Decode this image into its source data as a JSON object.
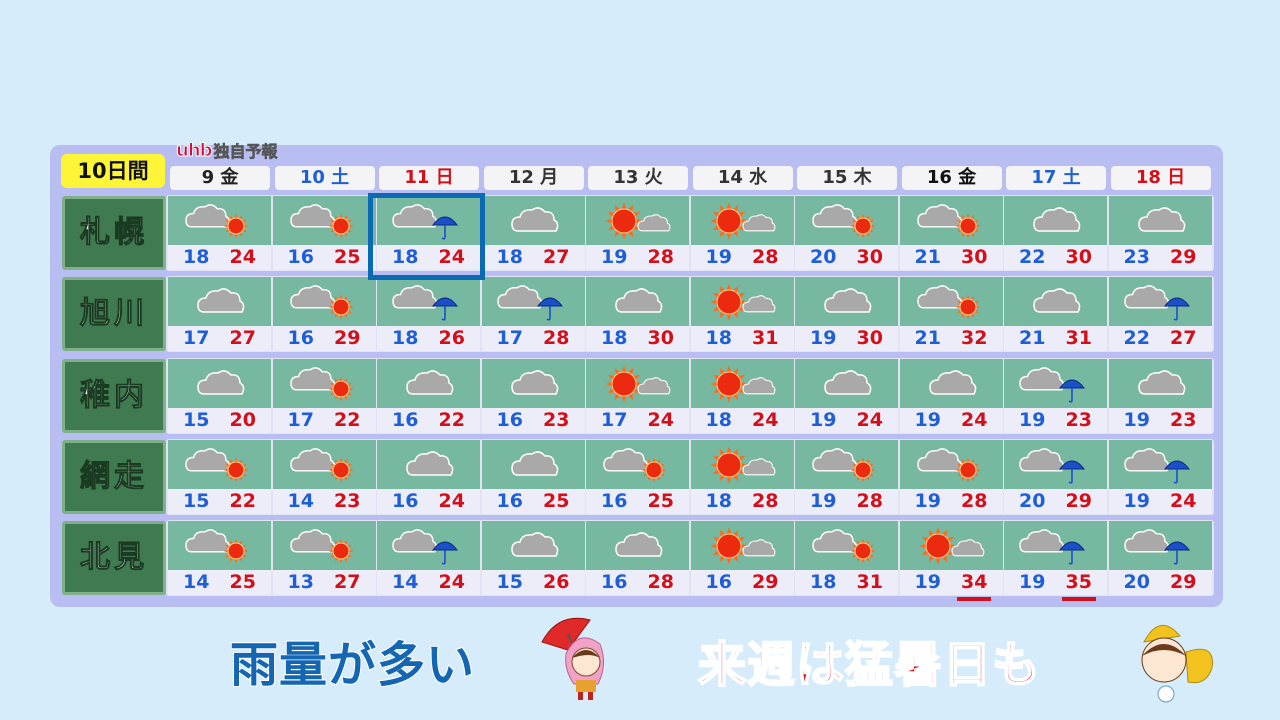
{
  "brand": {
    "logo": "uhb",
    "label": "独自予報"
  },
  "period_label": "10日間",
  "days": [
    {
      "label": "9 金",
      "color": "#222222"
    },
    {
      "label": "10 土",
      "color": "#1f5fd6"
    },
    {
      "label": "11 日",
      "color": "#d3101a"
    },
    {
      "label": "12 月",
      "color": "#333333"
    },
    {
      "label": "13 火",
      "color": "#333333"
    },
    {
      "label": "14 水",
      "color": "#333333"
    },
    {
      "label": "15 木",
      "color": "#333333"
    },
    {
      "label": "16 金",
      "color": "#111111"
    },
    {
      "label": "17 土",
      "color": "#1f5fd6"
    },
    {
      "label": "18 日",
      "color": "#d3101a"
    }
  ],
  "highlighted": {
    "city": "札幌",
    "day": "11 日"
  },
  "cities": [
    {
      "name": "札幌",
      "forecast": [
        {
          "icon": "cloud-sun",
          "low": 18,
          "high": 24
        },
        {
          "icon": "cloud-sun",
          "low": 16,
          "high": 25
        },
        {
          "icon": "cloud-umbrella",
          "low": 18,
          "high": 24
        },
        {
          "icon": "cloud",
          "low": 18,
          "high": 27
        },
        {
          "icon": "sun-cloud",
          "low": 19,
          "high": 28
        },
        {
          "icon": "sun-cloud",
          "low": 19,
          "high": 28
        },
        {
          "icon": "cloud-sun",
          "low": 20,
          "high": 30
        },
        {
          "icon": "cloud-sun",
          "low": 21,
          "high": 30
        },
        {
          "icon": "cloud",
          "low": 22,
          "high": 30
        },
        {
          "icon": "cloud",
          "low": 23,
          "high": 29
        }
      ]
    },
    {
      "name": "旭川",
      "forecast": [
        {
          "icon": "cloud",
          "low": 17,
          "high": 27
        },
        {
          "icon": "cloud-sun",
          "low": 16,
          "high": 29
        },
        {
          "icon": "cloud-umbrella",
          "low": 18,
          "high": 26
        },
        {
          "icon": "cloud-umbrella",
          "low": 17,
          "high": 28
        },
        {
          "icon": "cloud",
          "low": 18,
          "high": 30
        },
        {
          "icon": "sun-cloud",
          "low": 18,
          "high": 31
        },
        {
          "icon": "cloud",
          "low": 19,
          "high": 30
        },
        {
          "icon": "cloud-sun",
          "low": 21,
          "high": 32
        },
        {
          "icon": "cloud",
          "low": 21,
          "high": 31
        },
        {
          "icon": "cloud-umbrella",
          "low": 22,
          "high": 27
        }
      ]
    },
    {
      "name": "稚内",
      "forecast": [
        {
          "icon": "cloud",
          "low": 15,
          "high": 20
        },
        {
          "icon": "cloud-sun",
          "low": 17,
          "high": 22
        },
        {
          "icon": "cloud",
          "low": 16,
          "high": 22
        },
        {
          "icon": "cloud",
          "low": 16,
          "high": 23
        },
        {
          "icon": "sun-cloud",
          "low": 17,
          "high": 24
        },
        {
          "icon": "sun-cloud",
          "low": 18,
          "high": 24
        },
        {
          "icon": "cloud",
          "low": 19,
          "high": 24
        },
        {
          "icon": "cloud",
          "low": 19,
          "high": 24
        },
        {
          "icon": "cloud-umbrella",
          "low": 19,
          "high": 23
        },
        {
          "icon": "cloud",
          "low": 19,
          "high": 23
        }
      ]
    },
    {
      "name": "網走",
      "forecast": [
        {
          "icon": "cloud-sun",
          "low": 15,
          "high": 22
        },
        {
          "icon": "cloud-sun",
          "low": 14,
          "high": 23
        },
        {
          "icon": "cloud",
          "low": 16,
          "high": 24
        },
        {
          "icon": "cloud",
          "low": 16,
          "high": 25
        },
        {
          "icon": "cloud-sun",
          "low": 16,
          "high": 25
        },
        {
          "icon": "sun-cloud",
          "low": 18,
          "high": 28
        },
        {
          "icon": "cloud-sun",
          "low": 19,
          "high": 28
        },
        {
          "icon": "cloud-sun",
          "low": 19,
          "high": 28
        },
        {
          "icon": "cloud-umbrella",
          "low": 20,
          "high": 29
        },
        {
          "icon": "cloud-umbrella",
          "low": 19,
          "high": 24
        }
      ]
    },
    {
      "name": "北見",
      "forecast": [
        {
          "icon": "cloud-sun",
          "low": 14,
          "high": 25
        },
        {
          "icon": "cloud-sun",
          "low": 13,
          "high": 27
        },
        {
          "icon": "cloud-umbrella",
          "low": 14,
          "high": 24
        },
        {
          "icon": "cloud",
          "low": 15,
          "high": 26
        },
        {
          "icon": "cloud",
          "low": 16,
          "high": 28
        },
        {
          "icon": "sun-cloud",
          "low": 16,
          "high": 29
        },
        {
          "icon": "cloud-sun",
          "low": 18,
          "high": 31
        },
        {
          "icon": "sun-cloud",
          "low": 19,
          "high": 34,
          "extreme_heat": true
        },
        {
          "icon": "cloud-umbrella",
          "low": 19,
          "high": 35,
          "extreme_heat": true
        },
        {
          "icon": "cloud-umbrella",
          "low": 20,
          "high": 29
        }
      ]
    }
  ],
  "captions": {
    "left": "雨量が多い",
    "right": "来週は猛暑日も"
  },
  "colors": {
    "low": "#1f5fd6",
    "high": "#d3101a",
    "panel": "#b8bdf2",
    "cell": "#76b8a0",
    "city": "#3f7a50",
    "highlight": "#0a6ab4"
  }
}
